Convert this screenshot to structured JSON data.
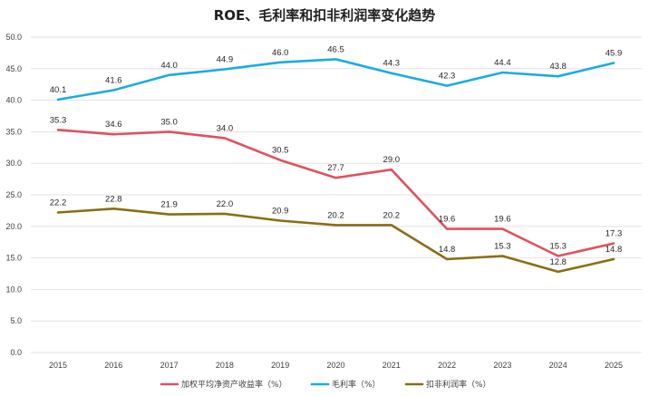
{
  "chart_data": {
    "type": "line",
    "title": "ROE、毛利率和扣非利润率变化趋势",
    "categories": [
      "2015",
      "2016",
      "2017",
      "2018",
      "2019",
      "2020",
      "2021",
      "2022",
      "2023",
      "2024",
      "2025"
    ],
    "ylim": [
      0,
      50
    ],
    "yticks": [
      "0.0",
      "5.0",
      "10.0",
      "15.0",
      "20.0",
      "25.0",
      "30.0",
      "35.0",
      "40.0",
      "45.0",
      "50.0"
    ],
    "grid": true,
    "legend_position": "bottom",
    "series": [
      {
        "name": "加权平均净资产收益率（%）",
        "color": "#e0515f",
        "values": [
          35.3,
          34.6,
          35.0,
          34.0,
          30.5,
          27.7,
          29.0,
          19.6,
          19.6,
          15.3,
          17.3
        ],
        "labels": [
          "35.3",
          "34.6",
          "35.0",
          "34.0",
          "30.5",
          "27.7",
          "29.0",
          "19.6",
          "19.6",
          "15.3",
          "17.3"
        ]
      },
      {
        "name": "毛利率（%）",
        "color": "#1aabe3",
        "values": [
          40.1,
          41.6,
          44.0,
          44.9,
          46.0,
          46.5,
          44.3,
          42.3,
          44.4,
          43.8,
          45.9
        ],
        "labels": [
          "40.1",
          "41.6",
          "44.0",
          "44.9",
          "46.0",
          "46.5",
          "44.3",
          "42.3",
          "44.4",
          "43.8",
          "45.9"
        ]
      },
      {
        "name": "扣非利润率（%）",
        "color": "#8c6d12",
        "values": [
          22.2,
          22.8,
          21.9,
          22.0,
          20.9,
          20.2,
          20.2,
          14.8,
          15.3,
          12.8,
          14.8
        ],
        "labels": [
          "22.2",
          "22.8",
          "21.9",
          "22.0",
          "20.9",
          "20.2",
          "20.2",
          "14.8",
          "15.3",
          "12.8",
          "14.8"
        ]
      }
    ]
  }
}
